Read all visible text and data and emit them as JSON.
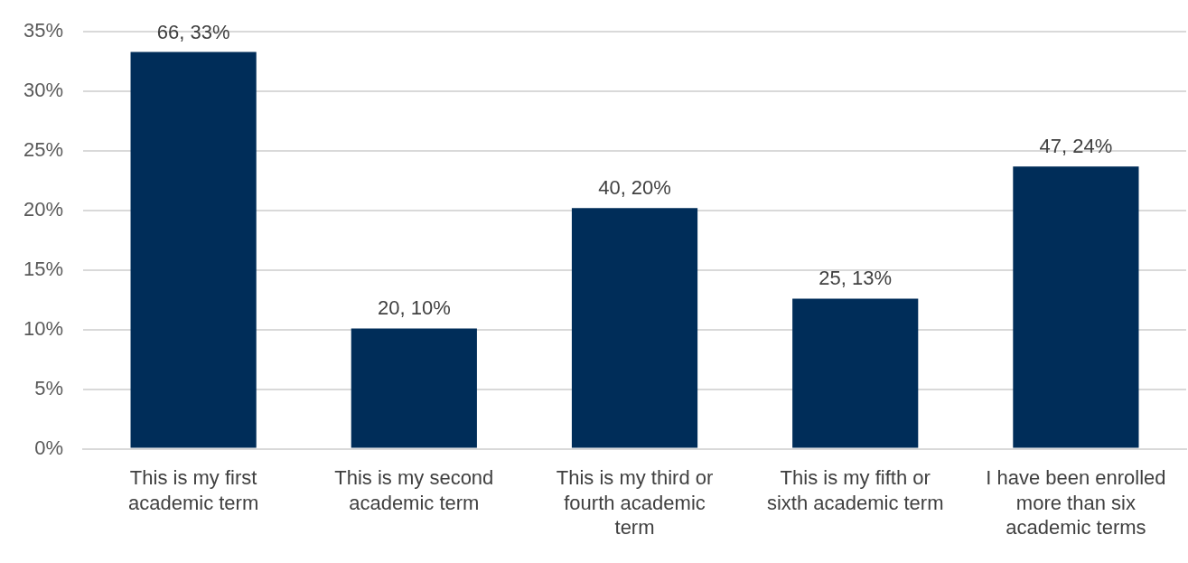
{
  "chart_data": {
    "type": "bar",
    "categories": [
      "This is my first academic term",
      "This is my second academic term",
      "This is my third or fourth academic term",
      "This is my fifth or sixth academic term",
      "I have been enrolled more than six academic terms"
    ],
    "values": [
      33.3,
      10.1,
      20.2,
      12.6,
      23.7
    ],
    "value_labels": [
      "66, 33%",
      "20, 10%",
      "40, 20%",
      "25, 13%",
      "47, 24%"
    ],
    "color": "#002d59",
    "ylim": [
      0,
      35
    ],
    "yticks": [
      {
        "value": 0,
        "label": "0%"
      },
      {
        "value": 5,
        "label": "5%"
      },
      {
        "value": 10,
        "label": "10%"
      },
      {
        "value": 15,
        "label": "15%"
      },
      {
        "value": 20,
        "label": "20%"
      },
      {
        "value": 25,
        "label": "25%"
      },
      {
        "value": 30,
        "label": "30%"
      },
      {
        "value": 35,
        "label": "35%"
      }
    ],
    "grid": "y"
  }
}
